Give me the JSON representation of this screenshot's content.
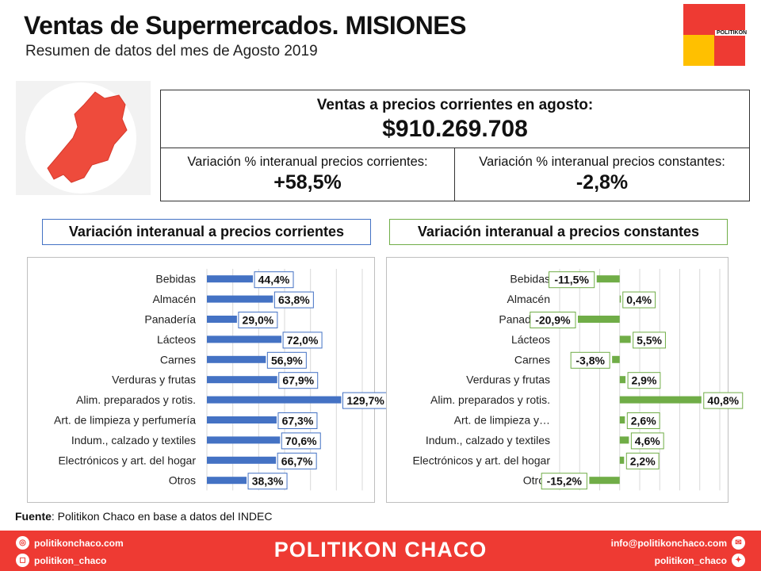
{
  "header": {
    "title": "Ventas de Supermercados. MISIONES",
    "subtitle": "Resumen de datos del mes de Agosto 2019",
    "logo_text": "POLITIKON"
  },
  "summary": {
    "sales_label": "Ventas a precios corrientes en agosto:",
    "sales_value": "$910.269.708",
    "var_current_label": "Variación % interanual precios corrientes:",
    "var_current_value": "+58,5%",
    "var_constant_label": "Variación % interanual precios constantes:",
    "var_constant_value": "-2,8%"
  },
  "colors": {
    "current_series": "#4472c4",
    "constant_series": "#70ad47",
    "map_fill": "#ee4b3c",
    "footer_bg": "#ee3a33",
    "logo_red": "#ee3a33",
    "logo_yellow": "#ffc000"
  },
  "chart_data": [
    {
      "type": "bar",
      "orientation": "horizontal",
      "title": "Variación interanual a precios corrientes",
      "categories": [
        "Bebidas",
        "Almacén",
        "Panadería",
        "Lácteos",
        "Carnes",
        "Verduras y frutas",
        "Alim. preparados y rotis.",
        "Art. de limpieza y perfumería",
        "Indum., calzado y textiles",
        "Electrónicos y art. del hogar",
        "Otros"
      ],
      "values": [
        44.4,
        63.8,
        29.0,
        72.0,
        56.9,
        67.9,
        129.7,
        67.3,
        70.6,
        66.7,
        38.3
      ],
      "value_labels": [
        "44,4%",
        "63,8%",
        "29,0%",
        "72,0%",
        "56,9%",
        "67,9%",
        "129,7%",
        "67,3%",
        "70,6%",
        "66,7%",
        "38,3%"
      ],
      "xlim": [
        0,
        150
      ],
      "grid": true,
      "legend": "none"
    },
    {
      "type": "bar",
      "orientation": "horizontal",
      "title": "Variación interanual a precios constantes",
      "categories": [
        "Bebidas",
        "Almacén",
        "Panadería",
        "Lácteos",
        "Carnes",
        "Verduras y frutas",
        "Alim. preparados y rotis.",
        "Art. de limpieza y…",
        "Indum., calzado y textiles",
        "Electrónicos y art. del hogar",
        "Otros"
      ],
      "values": [
        -11.5,
        0.4,
        -20.9,
        5.5,
        -3.8,
        2.9,
        40.8,
        2.6,
        4.6,
        2.2,
        -15.2
      ],
      "value_labels": [
        "-11,5%",
        "0,4%",
        "-20,9%",
        "5,5%",
        "-3,8%",
        "2,9%",
        "40,8%",
        "2,6%",
        "4,6%",
        "2,2%",
        "-15,2%"
      ],
      "xlim": [
        -30,
        50
      ],
      "grid": true,
      "legend": "none"
    }
  ],
  "footer": {
    "source_label": "Fuente",
    "source_text": ": Politikon Chaco en base a datos del INDEC",
    "brand": "POLITIKON CHACO",
    "website": "politikonchaco.com",
    "instagram": "politikon_chaco",
    "email": "info@politikonchaco.com",
    "twitter": "politikon_chaco"
  }
}
